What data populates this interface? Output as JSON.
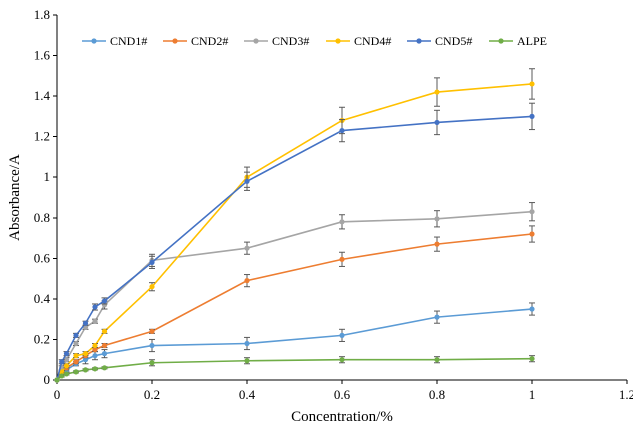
{
  "chart_data": {
    "type": "line",
    "title": "",
    "xlabel": "Concentration/%",
    "ylabel": "Absorbance/A",
    "xlim": [
      0,
      1.2
    ],
    "ylim": [
      0,
      1.8
    ],
    "xticks": [
      "0",
      "0.2",
      "0.4",
      "0.6",
      "0.8",
      "1",
      "1.2"
    ],
    "yticks": [
      "0",
      "0.2",
      "0.4",
      "0.6",
      "0.8",
      "1",
      "1.2",
      "1.4",
      "1.6",
      "1.8"
    ],
    "grid": false,
    "legend_position": "top",
    "series": [
      {
        "name": "CND1#",
        "color": "#5B9BD5",
        "x": [
          0,
          0.01,
          0.02,
          0.04,
          0.06,
          0.08,
          0.1,
          0.2,
          0.4,
          0.6,
          0.8,
          1.0
        ],
        "values": [
          0.0,
          0.03,
          0.05,
          0.08,
          0.1,
          0.12,
          0.13,
          0.17,
          0.18,
          0.22,
          0.31,
          0.35
        ],
        "errors": [
          0.0,
          0.005,
          0.01,
          0.01,
          0.02,
          0.02,
          0.02,
          0.03,
          0.03,
          0.03,
          0.03,
          0.03
        ]
      },
      {
        "name": "CND2#",
        "color": "#ED7D31",
        "x": [
          0,
          0.01,
          0.02,
          0.04,
          0.06,
          0.08,
          0.1,
          0.2,
          0.4,
          0.6,
          0.8,
          1.0
        ],
        "values": [
          0.0,
          0.04,
          0.06,
          0.09,
          0.12,
          0.15,
          0.17,
          0.24,
          0.49,
          0.595,
          0.67,
          0.72
        ],
        "errors": [
          0.0,
          0.005,
          0.01,
          0.01,
          0.01,
          0.01,
          0.01,
          0.01,
          0.03,
          0.035,
          0.035,
          0.04
        ]
      },
      {
        "name": "CND3#",
        "color": "#A5A5A5",
        "x": [
          0,
          0.01,
          0.02,
          0.04,
          0.06,
          0.08,
          0.1,
          0.2,
          0.4,
          0.6,
          0.8,
          1.0
        ],
        "values": [
          0.0,
          0.06,
          0.1,
          0.18,
          0.26,
          0.29,
          0.37,
          0.59,
          0.65,
          0.78,
          0.795,
          0.83
        ],
        "errors": [
          0.0,
          0.01,
          0.01,
          0.01,
          0.01,
          0.01,
          0.02,
          0.03,
          0.03,
          0.035,
          0.04,
          0.045
        ]
      },
      {
        "name": "CND4#",
        "color": "#FFC000",
        "x": [
          0,
          0.01,
          0.02,
          0.04,
          0.06,
          0.08,
          0.1,
          0.2,
          0.4,
          0.6,
          0.8,
          1.0
        ],
        "values": [
          0.0,
          0.04,
          0.07,
          0.12,
          0.13,
          0.17,
          0.24,
          0.46,
          1.0,
          1.28,
          1.42,
          1.46
        ],
        "errors": [
          0.0,
          0.005,
          0.01,
          0.01,
          0.01,
          0.01,
          0.01,
          0.02,
          0.05,
          0.065,
          0.07,
          0.075
        ]
      },
      {
        "name": "CND5#",
        "color": "#4472C4",
        "x": [
          0,
          0.01,
          0.02,
          0.04,
          0.06,
          0.08,
          0.1,
          0.2,
          0.4,
          0.6,
          0.8,
          1.0
        ],
        "values": [
          0.0,
          0.09,
          0.13,
          0.22,
          0.28,
          0.36,
          0.39,
          0.58,
          0.98,
          1.23,
          1.27,
          1.3
        ],
        "errors": [
          0.0,
          0.01,
          0.01,
          0.01,
          0.01,
          0.015,
          0.015,
          0.03,
          0.045,
          0.055,
          0.06,
          0.065
        ]
      },
      {
        "name": "ALPE",
        "color": "#70AD47",
        "x": [
          0,
          0.01,
          0.02,
          0.04,
          0.06,
          0.08,
          0.1,
          0.2,
          0.4,
          0.6,
          0.8,
          1.0
        ],
        "values": [
          0.0,
          0.02,
          0.03,
          0.04,
          0.05,
          0.055,
          0.06,
          0.085,
          0.095,
          0.1,
          0.1,
          0.105
        ],
        "errors": [
          0.0,
          0.005,
          0.005,
          0.005,
          0.005,
          0.005,
          0.005,
          0.015,
          0.015,
          0.015,
          0.015,
          0.015
        ]
      }
    ]
  }
}
